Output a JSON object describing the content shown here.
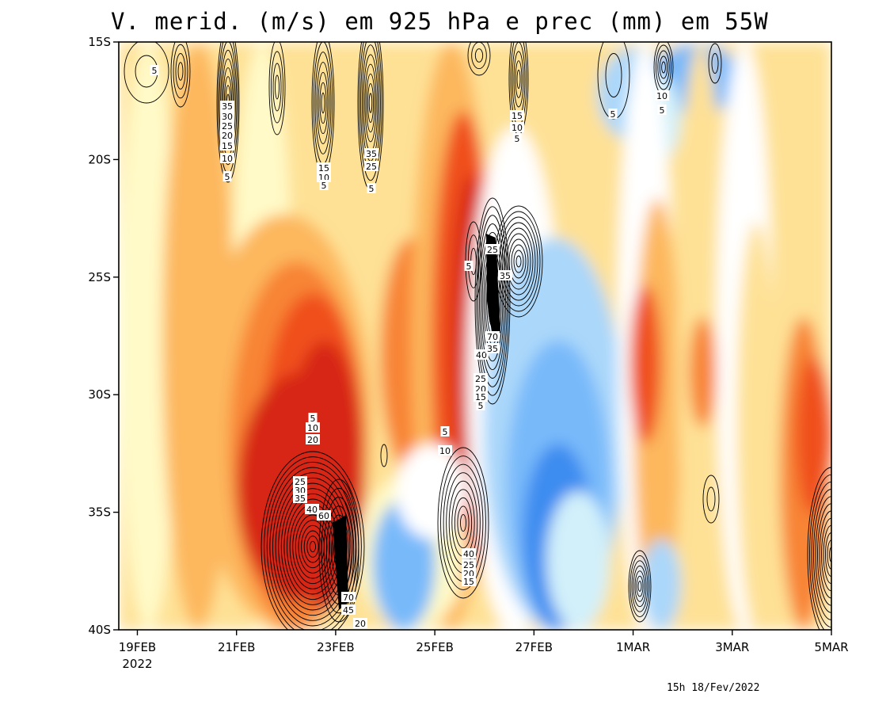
{
  "chart_data": {
    "type": "heatmap",
    "title": "V. merid. (m/s) em 925 hPa e prec (mm) em 55W",
    "timestamp": "15h 18/Fev/2022",
    "x_axis": {
      "type": "time",
      "tick_labels": [
        "19FEB",
        "21FEB",
        "23FEB",
        "25FEB",
        "27FEB",
        "1MAR",
        "3MAR",
        "5MAR"
      ],
      "tick_dates": [
        "2022-02-19",
        "2022-02-21",
        "2022-02-23",
        "2022-02-25",
        "2022-02-27",
        "2022-03-01",
        "2022-03-03",
        "2022-03-05"
      ],
      "year_label": "2022",
      "range": [
        "2022-02-18T15:00",
        "2022-03-05"
      ]
    },
    "y_axis": {
      "tick_labels": [
        "15S",
        "20S",
        "25S",
        "30S",
        "35S",
        "40S"
      ],
      "tick_values": [
        -15,
        -20,
        -25,
        -30,
        -35,
        -40
      ],
      "range": [
        -40,
        -15
      ]
    },
    "shading_palette": [
      "#1a66e6",
      "#3c8cf0",
      "#78b9fa",
      "#aad7fa",
      "#d2f0fa",
      "#ffffff",
      "#fffac8",
      "#fee195",
      "#fdb75d",
      "#f88436",
      "#f0501e",
      "#d72814"
    ],
    "precip_contour_labels": [
      5,
      10,
      15,
      20,
      25,
      30,
      35,
      40,
      45,
      60,
      70
    ],
    "contour_color": "#000000",
    "grid": false,
    "legend": "none"
  }
}
